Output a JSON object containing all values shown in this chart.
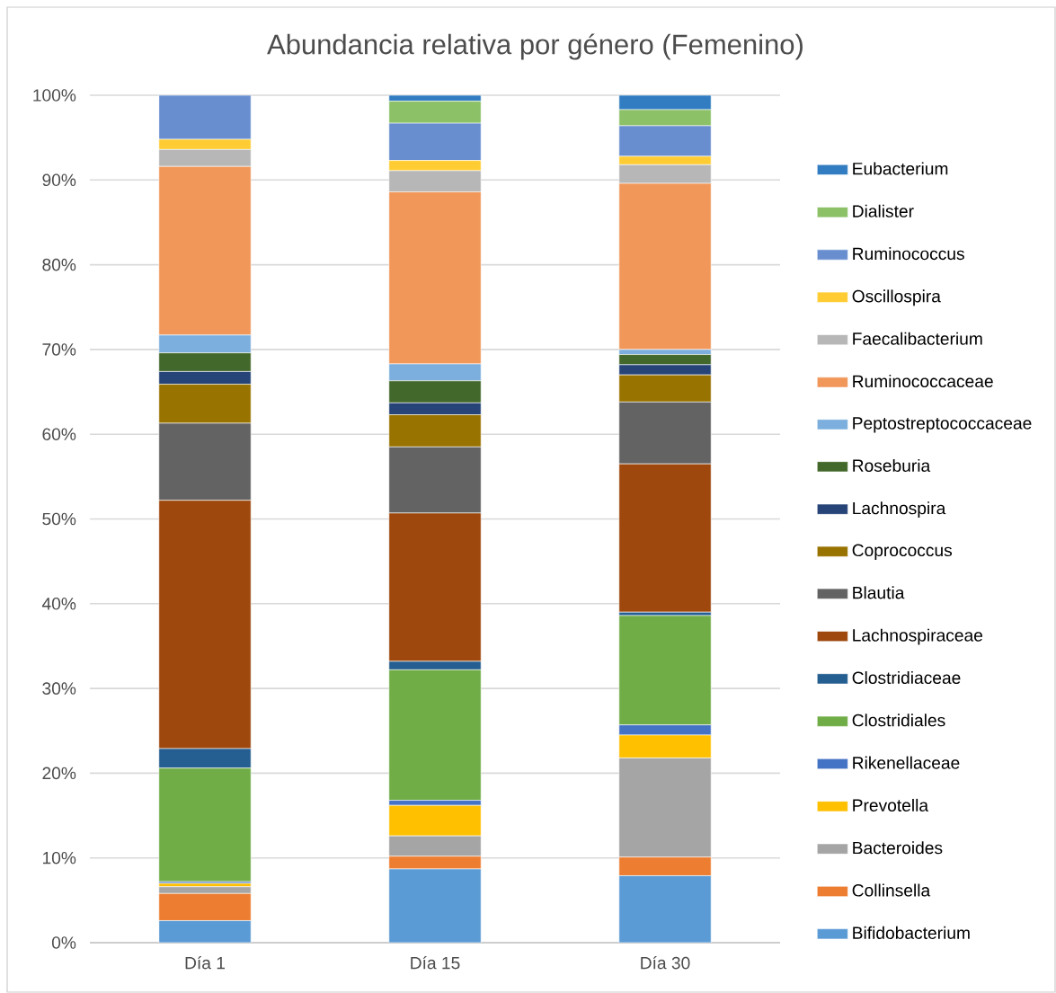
{
  "chart_data": {
    "type": "bar",
    "stacked": true,
    "title": "Abundancia relativa por género (Femenino)",
    "categories": [
      "Día 1",
      "Día 15",
      "Día 30"
    ],
    "ylim": [
      0,
      100
    ],
    "yticks": [
      {
        "value": 0,
        "label": "0%"
      },
      {
        "value": 10,
        "label": "10%"
      },
      {
        "value": 20,
        "label": "20%"
      },
      {
        "value": 30,
        "label": "30%"
      },
      {
        "value": 40,
        "label": "40%"
      },
      {
        "value": 50,
        "label": "50%"
      },
      {
        "value": 60,
        "label": "60%"
      },
      {
        "value": 70,
        "label": "70%"
      },
      {
        "value": 80,
        "label": "80%"
      },
      {
        "value": 90,
        "label": "90%"
      },
      {
        "value": 100,
        "label": "100%"
      }
    ],
    "grid": "y",
    "legend": "right",
    "series": [
      {
        "name": "Bifidobacterium",
        "color": "#5b9bd5",
        "values": [
          2.6,
          8.7,
          7.9
        ]
      },
      {
        "name": "Collinsella",
        "color": "#ed7d31",
        "values": [
          3.2,
          1.5,
          2.2
        ]
      },
      {
        "name": "Bacteroides",
        "color": "#a5a5a5",
        "values": [
          0.8,
          2.4,
          11.7
        ]
      },
      {
        "name": "Prevotella",
        "color": "#ffc000",
        "values": [
          0.4,
          3.6,
          2.7
        ]
      },
      {
        "name": "Rikenellaceae",
        "color": "#4472c4",
        "values": [
          0.2,
          0.6,
          1.2
        ]
      },
      {
        "name": "Clostridiales",
        "color": "#70ad47",
        "values": [
          13.4,
          15.4,
          12.9
        ]
      },
      {
        "name": "Clostridiaceae",
        "color": "#255e91",
        "values": [
          2.3,
          1.0,
          0.4
        ]
      },
      {
        "name": "Lachnospiraceae",
        "color": "#9e480e",
        "values": [
          29.3,
          17.5,
          17.5
        ]
      },
      {
        "name": "Blautia",
        "color": "#636363",
        "values": [
          9.1,
          7.8,
          7.3
        ]
      },
      {
        "name": "Coprococcus",
        "color": "#997300",
        "values": [
          4.6,
          3.8,
          3.2
        ]
      },
      {
        "name": "Lachnospira",
        "color": "#264478",
        "values": [
          1.5,
          1.4,
          1.2
        ]
      },
      {
        "name": "Roseburia",
        "color": "#43682b",
        "values": [
          2.2,
          2.6,
          1.2
        ]
      },
      {
        "name": "Peptostreptococcaceae",
        "color": "#7cafdd",
        "values": [
          2.1,
          2.0,
          0.6
        ]
      },
      {
        "name": "Ruminococcaceae",
        "color": "#f1975a",
        "values": [
          19.9,
          20.3,
          19.6
        ]
      },
      {
        "name": "Faecalibacterium",
        "color": "#b7b7b7",
        "values": [
          2.0,
          2.5,
          2.2
        ]
      },
      {
        "name": "Oscillospira",
        "color": "#ffcd33",
        "values": [
          1.2,
          1.2,
          1.0
        ]
      },
      {
        "name": "Ruminococcus",
        "color": "#698ed0",
        "values": [
          5.2,
          4.4,
          3.6
        ]
      },
      {
        "name": "Dialister",
        "color": "#8cc168",
        "values": [
          0,
          2.6,
          1.9
        ]
      },
      {
        "name": "Eubacterium",
        "color": "#327dc2",
        "values": [
          0,
          0.7,
          1.7
        ]
      }
    ]
  }
}
